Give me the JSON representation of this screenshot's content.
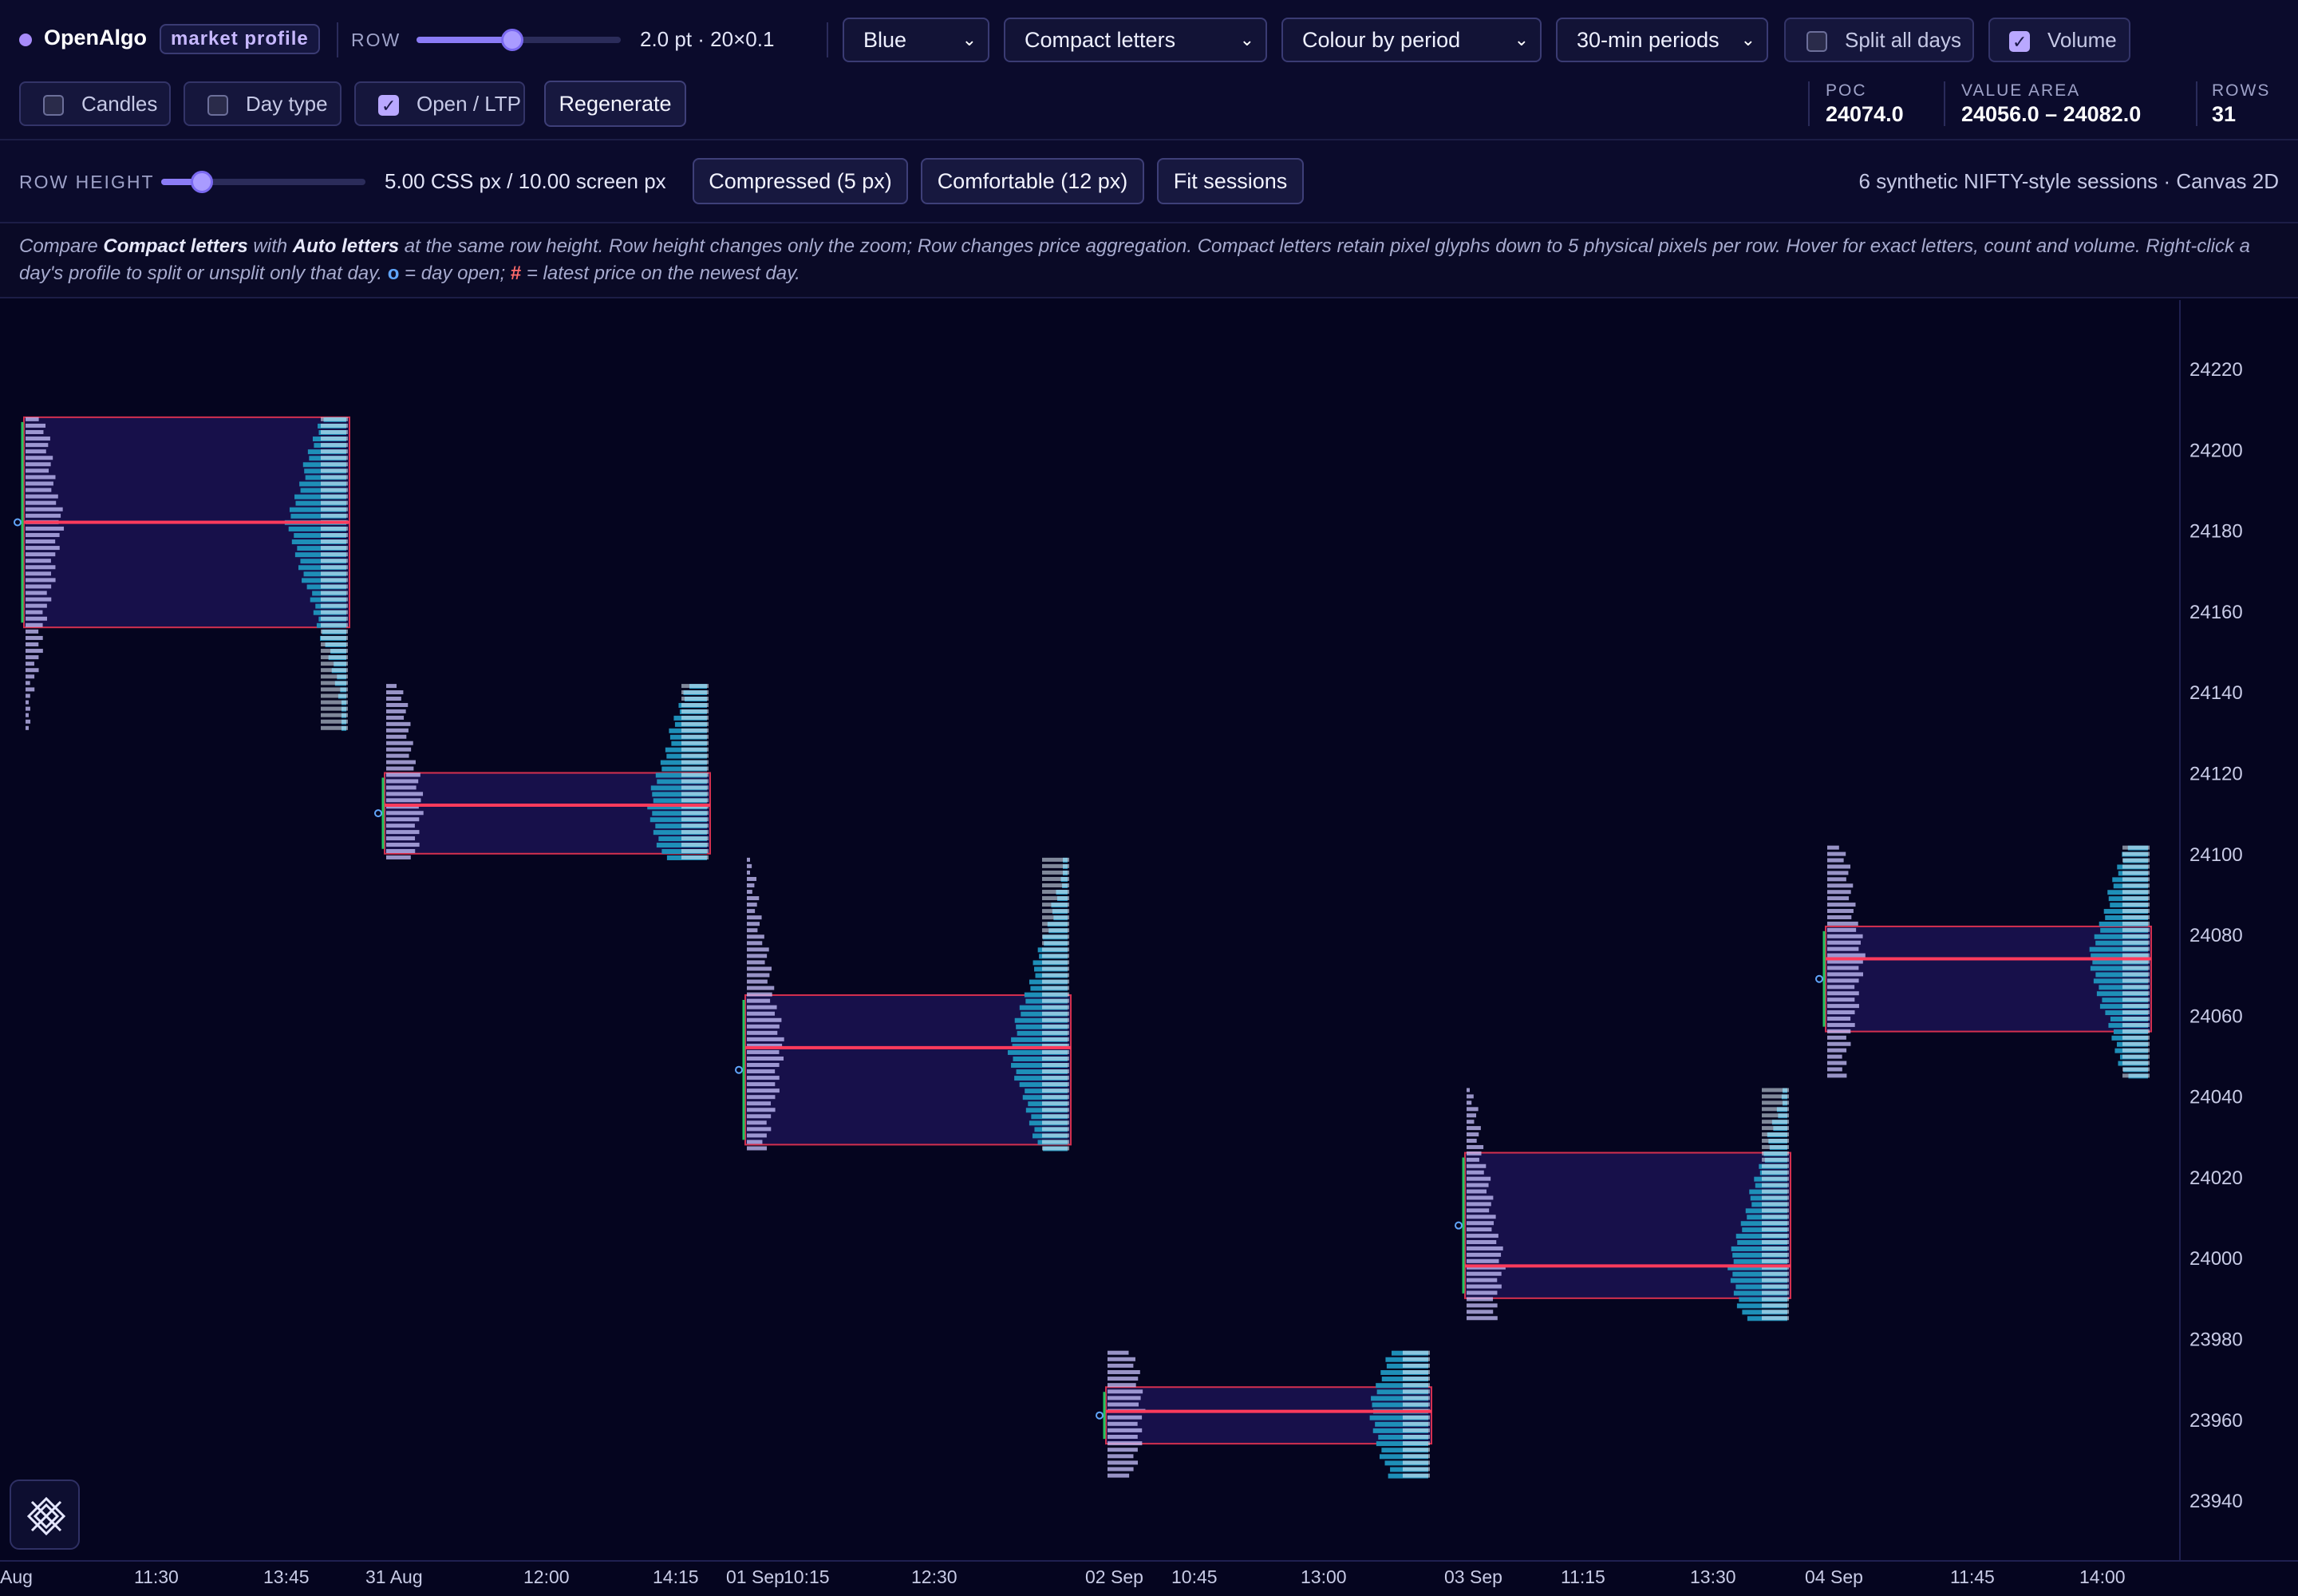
{
  "toolbar": {
    "brand": "OpenAlgo",
    "badge": "market profile",
    "row_label": "ROW",
    "row_slider_value": 0.47,
    "row_value_text": "2.0 pt · 20×0.1",
    "theme_select": "Blue",
    "letters_select": "Compact letters",
    "colour_select": "Colour by period",
    "period_select": "30-min periods",
    "split_all_days": {
      "label": "Split all days",
      "checked": false
    },
    "volume": {
      "label": "Volume",
      "checked": true
    },
    "candles": {
      "label": "Candles",
      "checked": false
    },
    "day_type": {
      "label": "Day type",
      "checked": false
    },
    "open_ltp": {
      "label": "Open / LTP",
      "checked": true
    },
    "regenerate_label": "Regenerate"
  },
  "stats": {
    "poc_label": "POC",
    "poc_value": "24074.0",
    "va_label": "VALUE AREA",
    "va_value": "24056.0 – 24082.0",
    "rows_label": "ROWS",
    "rows_value": "31"
  },
  "row_height": {
    "label": "ROW HEIGHT",
    "slider_value": 0.2,
    "value_text": "5.00 CSS px / 10.00 screen px",
    "compressed_label": "Compressed (5 px)",
    "comfortable_label": "Comfortable (12 px)",
    "fit_label": "Fit sessions",
    "info_text": "6 synthetic NIFTY-style sessions · Canvas 2D"
  },
  "note": {
    "p1": "Compare ",
    "b1": "Compact letters",
    "p2": " with ",
    "b2": "Auto letters",
    "p3": " at the same row height. Row height changes only the zoom; Row changes price aggregation. Compact letters retain pixel glyphs down to 5 physical pixels per row. Hover for exact letters, count and volume. Right-click a day's profile to split or unsplit only that day. ",
    "o_sym": "o",
    "p4": " = day open; ",
    "h_sym": "#",
    "p5": " = latest price on the newest day."
  },
  "chart_data": {
    "type": "market-profile",
    "y_ticks": [
      24220,
      24200,
      24180,
      24160,
      24140,
      24120,
      24100,
      24080,
      24060,
      24040,
      24020,
      24000,
      23980,
      23960,
      23940
    ],
    "ylim": [
      23925,
      24237
    ],
    "x_ticks": [
      "Aug",
      "11:30",
      "13:45",
      "31 Aug",
      "12:00",
      "14:15",
      "01 Sep",
      "10:15",
      "12:30",
      "02 Sep",
      "10:45",
      "13:00",
      "03 Sep",
      "11:15",
      "13:30",
      "04 Sep",
      "11:45",
      "14:00"
    ],
    "sessions": [
      {
        "high": 24208,
        "low": 24130,
        "vah": 24208,
        "val": 24156,
        "poc": 24182
      },
      {
        "high": 24142,
        "low": 24098,
        "vah": 24120,
        "val": 24100,
        "poc": 24112
      },
      {
        "high": 24099,
        "low": 24026,
        "vah": 24065,
        "val": 24028,
        "poc": 24052
      },
      {
        "high": 23977,
        "low": 23945,
        "vah": 23968,
        "val": 23954,
        "poc": 23962
      },
      {
        "high": 24042,
        "low": 23984,
        "vah": 24026,
        "val": 23990,
        "poc": 23998
      },
      {
        "high": 24102,
        "low": 24044,
        "vah": 24082,
        "val": 24056,
        "poc": 24074
      }
    ]
  },
  "colors": {
    "poc": "#ff3b5c",
    "va_border": "#d4304f",
    "va_fill": "#17104a",
    "volume_bar": "#1e8fb8",
    "letters": "#c9c3ff",
    "open_marker": "#22c55e"
  }
}
